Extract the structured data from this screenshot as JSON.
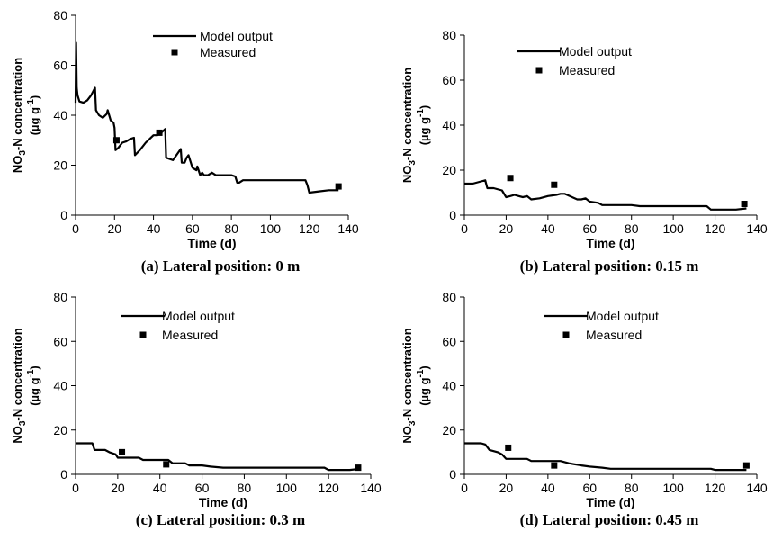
{
  "chart_data": [
    {
      "type": "line",
      "caption": "(a) Lateral position: 0 m",
      "xlabel": "Time (d)",
      "ylabel_line1": "NO3-N concentration",
      "ylabel_line2": "(µg g-1)",
      "xlim": [
        0,
        140
      ],
      "ylim": [
        0,
        80
      ],
      "xticks": [
        0,
        20,
        40,
        60,
        80,
        100,
        120,
        140
      ],
      "yticks": [
        0,
        20,
        40,
        60,
        80
      ],
      "legend_position": "top-center",
      "series": [
        {
          "name": "Model output",
          "style": "line",
          "x": [
            0,
            0.3,
            0.6,
            1,
            2,
            4,
            6,
            8,
            10,
            10.5,
            12,
            14,
            16,
            16.5,
            18,
            19.5,
            20,
            20.5,
            22,
            24,
            26,
            28,
            30,
            30.5,
            33,
            36,
            40,
            42,
            44,
            46,
            46.5,
            50,
            54,
            54.5,
            56,
            57,
            58,
            60,
            62,
            62.5,
            64,
            65,
            66,
            68,
            70,
            72,
            75,
            80,
            82,
            83,
            84,
            86,
            90,
            100,
            110,
            118,
            119,
            120,
            125,
            130,
            135
          ],
          "y": [
            45,
            69,
            51,
            48,
            45.5,
            45,
            46,
            48,
            51,
            42,
            40,
            39,
            40.5,
            42,
            38,
            37,
            35,
            26,
            27,
            29,
            29.5,
            30.5,
            31,
            24,
            26,
            29,
            32,
            32,
            33,
            34.5,
            23,
            22,
            26.5,
            21,
            21,
            23,
            24,
            19,
            18,
            19.5,
            16,
            17,
            16,
            16,
            17,
            16,
            16,
            16,
            15.5,
            13,
            13,
            14,
            14,
            14,
            14,
            14,
            12,
            9,
            9.5,
            10,
            10
          ]
        },
        {
          "name": "Measured",
          "style": "marker",
          "x": [
            21,
            43,
            135
          ],
          "y": [
            30,
            33,
            11.5
          ]
        }
      ]
    },
    {
      "type": "line",
      "caption": "(b) Lateral position: 0.15 m",
      "xlabel": "Time (d)",
      "ylabel_line1": "NO3-N concentration",
      "ylabel_line2": "(µg g-1)",
      "xlim": [
        0,
        140
      ],
      "ylim": [
        0,
        80
      ],
      "xticks": [
        0,
        20,
        40,
        60,
        80,
        100,
        120,
        140
      ],
      "yticks": [
        0,
        20,
        40,
        60,
        80
      ],
      "legend_position": "top-center",
      "series": [
        {
          "name": "Model output",
          "style": "line",
          "x": [
            0,
            4,
            8,
            10,
            11,
            14,
            18,
            20,
            22,
            24,
            26,
            28,
            30,
            32,
            36,
            40,
            44,
            46,
            48,
            54,
            56,
            58,
            60,
            64,
            66,
            70,
            80,
            84,
            90,
            100,
            110,
            116,
            118,
            125,
            130,
            135
          ],
          "y": [
            14,
            14,
            15,
            15.5,
            12,
            12,
            11,
            8,
            8.5,
            9,
            8.5,
            8,
            8.5,
            7,
            7.5,
            8.5,
            9,
            9.5,
            9.5,
            7,
            7,
            7.5,
            6,
            5.5,
            4.5,
            4.5,
            4.5,
            4,
            4,
            4,
            4,
            4,
            2.5,
            2.5,
            2.5,
            3
          ]
        },
        {
          "name": "Measured",
          "style": "marker",
          "x": [
            22,
            43,
            134
          ],
          "y": [
            16.5,
            13.5,
            5
          ]
        }
      ]
    },
    {
      "type": "line",
      "caption": "(c) Lateral position: 0.3 m",
      "xlabel": "Time (d)",
      "ylabel_line1": "NO3-N concentration",
      "ylabel_line2": "(µg g-1)",
      "xlim": [
        0,
        140
      ],
      "ylim": [
        0,
        80
      ],
      "xticks": [
        0,
        20,
        40,
        60,
        80,
        100,
        120,
        140
      ],
      "yticks": [
        0,
        20,
        40,
        60,
        80
      ],
      "legend_position": "top-center",
      "series": [
        {
          "name": "Model output",
          "style": "line",
          "x": [
            0,
            4,
            8,
            9,
            12,
            14,
            16,
            19,
            20,
            22,
            30,
            32,
            40,
            44,
            46,
            52,
            54,
            60,
            64,
            70,
            80,
            90,
            100,
            110,
            118,
            120,
            130,
            135
          ],
          "y": [
            14,
            14,
            14,
            11,
            11,
            11,
            10,
            9,
            7.5,
            7.5,
            7.5,
            6.5,
            6.5,
            6.5,
            5,
            5,
            4,
            4,
            3.5,
            3,
            3,
            3,
            3,
            3,
            3,
            2,
            2,
            2.5
          ]
        },
        {
          "name": "Measured",
          "style": "marker",
          "x": [
            22,
            43,
            134
          ],
          "y": [
            10,
            4.5,
            3
          ]
        }
      ]
    },
    {
      "type": "line",
      "caption": "(d) Lateral position: 0.45 m",
      "xlabel": "Time (d)",
      "ylabel_line1": "NO3-N concentration",
      "ylabel_line2": "(µg g-1)",
      "xlim": [
        0,
        140
      ],
      "ylim": [
        0,
        80
      ],
      "xticks": [
        0,
        20,
        40,
        60,
        80,
        100,
        120,
        140
      ],
      "yticks": [
        0,
        20,
        40,
        60,
        80
      ],
      "legend_position": "top-center",
      "series": [
        {
          "name": "Model output",
          "style": "line",
          "x": [
            0,
            4,
            8,
            10,
            12,
            16,
            18,
            20,
            24,
            30,
            32,
            40,
            46,
            50,
            56,
            60,
            66,
            70,
            80,
            90,
            100,
            110,
            118,
            120,
            130,
            135
          ],
          "y": [
            14,
            14,
            14,
            13.5,
            11,
            10,
            9,
            7,
            7,
            7,
            6,
            6,
            6,
            5,
            4,
            3.5,
            3,
            2.5,
            2.5,
            2.5,
            2.5,
            2.5,
            2.5,
            2,
            2,
            2
          ]
        },
        {
          "name": "Measured",
          "style": "marker",
          "x": [
            21,
            43,
            135
          ],
          "y": [
            12,
            4,
            4
          ]
        }
      ]
    }
  ]
}
